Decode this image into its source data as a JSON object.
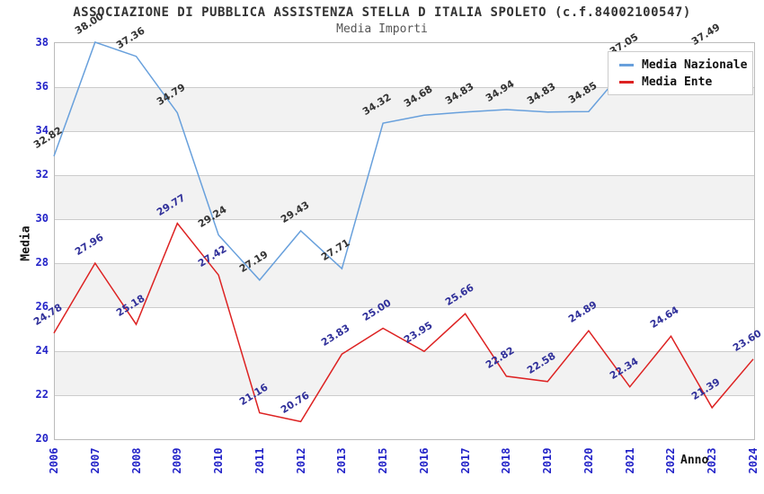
{
  "chart_data": {
    "type": "line",
    "title": "ASSOCIAZIONE DI PUBBLICA ASSISTENZA STELLA D ITALIA SPOLETO (c.f.84002100547)",
    "subtitle": "Media Importi",
    "xlabel": "Anno",
    "ylabel": "Media",
    "ylim": [
      20,
      38
    ],
    "ytick_step": 2,
    "grid": true,
    "band_color": "#f2f2f2",
    "gridline_color": "#cccccc",
    "tick_label_color": "#2323c8",
    "legend_position": "top-right",
    "categories": [
      "2006",
      "2007",
      "2008",
      "2009",
      "2010",
      "2011",
      "2012",
      "2013",
      "2015",
      "2016",
      "2017",
      "2018",
      "2019",
      "2020",
      "2021",
      "2022",
      "2023",
      "2024"
    ],
    "series": [
      {
        "name": "Media Nazionale",
        "color": "#68a0dc",
        "label_color": "#333333",
        "values": [
          32.82,
          38.0,
          37.36,
          34.79,
          29.24,
          27.19,
          29.43,
          27.71,
          34.32,
          34.68,
          34.83,
          34.94,
          34.83,
          34.85,
          37.05,
          null,
          37.49,
          null
        ]
      },
      {
        "name": "Media Ente",
        "color": "#dd2222",
        "label_color": "#30309a",
        "values": [
          24.78,
          27.96,
          25.18,
          29.77,
          27.42,
          21.16,
          20.76,
          23.83,
          25.0,
          23.95,
          25.66,
          22.82,
          22.58,
          24.89,
          22.34,
          24.64,
          21.39,
          23.6
        ]
      }
    ]
  }
}
